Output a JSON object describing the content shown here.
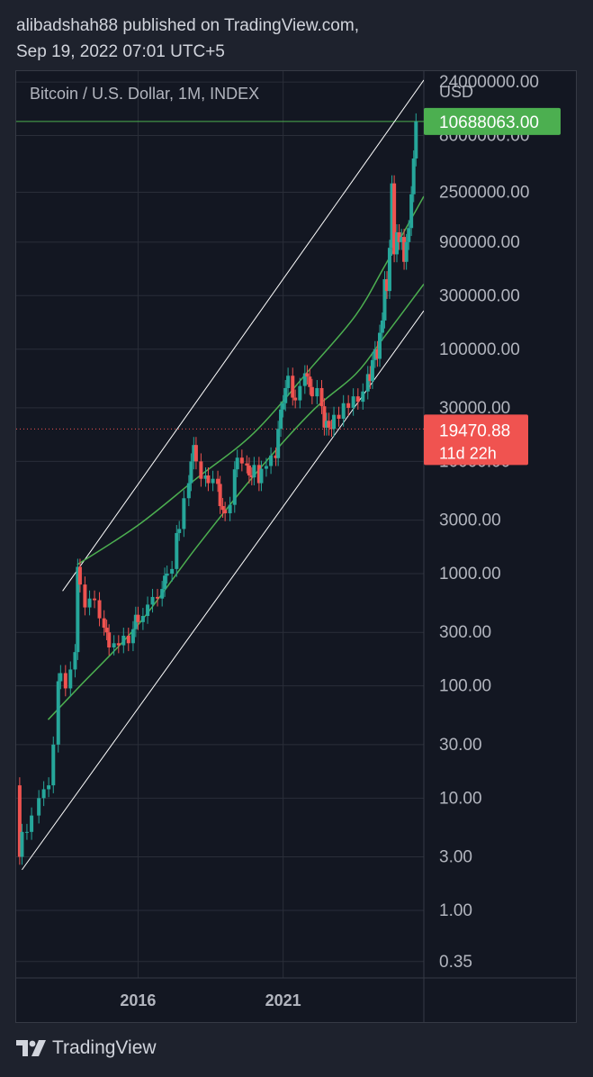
{
  "header": {
    "line1": "alibadshah88 published on TradingView.com,",
    "line2": "Sep 19, 2022 07:01 UTC+5"
  },
  "footer": {
    "brand": "TradingView",
    "logo_icon": "tradingview-logo-icon"
  },
  "colors": {
    "background": "#1e222d",
    "pane": "#131722",
    "grid": "#2a2e39",
    "up": "#26a69a",
    "down": "#ef5350",
    "curve": "#4caf50",
    "channel": "#ffffff",
    "current_price_bg": "#f05350",
    "target_bg": "#4caf50"
  },
  "chart_data": {
    "type": "candlestick",
    "title": "Bitcoin / U.S. Dollar, 1M, INDEX",
    "y_unit": "USD",
    "y_scale": "log",
    "ylim": [
      0.25,
      30000000
    ],
    "xlim": [
      2011.8,
      2025.85
    ],
    "y_ticks": [
      {
        "value": 24000000,
        "label": "24000000.00"
      },
      {
        "value": 8000000,
        "label": "8000000.00"
      },
      {
        "value": 2500000,
        "label": "2500000.00"
      },
      {
        "value": 900000,
        "label": "900000.00"
      },
      {
        "value": 300000,
        "label": "300000.00"
      },
      {
        "value": 100000,
        "label": "100000.00"
      },
      {
        "value": 30000,
        "label": "30000.00"
      },
      {
        "value": 10000,
        "label": "10000.00"
      },
      {
        "value": 3000,
        "label": "3000.00"
      },
      {
        "value": 1000,
        "label": "1000.00"
      },
      {
        "value": 300,
        "label": "300.00"
      },
      {
        "value": 100,
        "label": "100.00"
      },
      {
        "value": 30,
        "label": "30.00"
      },
      {
        "value": 10,
        "label": "10.00"
      },
      {
        "value": 3,
        "label": "3.00"
      },
      {
        "value": 1,
        "label": "1.00"
      },
      {
        "value": 0.35,
        "label": "0.35"
      }
    ],
    "x_ticks": [
      {
        "value": 2016,
        "label": "2016"
      },
      {
        "value": 2021,
        "label": "2021"
      }
    ],
    "grid": true,
    "current_price": {
      "value": 19470.88,
      "label": "19470.88",
      "countdown": "11d 22h"
    },
    "target_level": {
      "value": 10688063,
      "label": "10688063.00"
    },
    "close_series": [
      [
        2011.8,
        13
      ],
      [
        2011.92,
        3
      ],
      [
        2012.0,
        5
      ],
      [
        2012.17,
        5
      ],
      [
        2012.33,
        7
      ],
      [
        2012.58,
        10
      ],
      [
        2012.75,
        12
      ],
      [
        2012.92,
        13
      ],
      [
        2013.08,
        30
      ],
      [
        2013.25,
        110
      ],
      [
        2013.33,
        130
      ],
      [
        2013.5,
        95
      ],
      [
        2013.67,
        140
      ],
      [
        2013.83,
        200
      ],
      [
        2013.92,
        1150
      ],
      [
        2014.0,
        800
      ],
      [
        2014.17,
        500
      ],
      [
        2014.33,
        600
      ],
      [
        2014.5,
        580
      ],
      [
        2014.67,
        400
      ],
      [
        2014.83,
        330
      ],
      [
        2014.92,
        300
      ],
      [
        2015.0,
        220
      ],
      [
        2015.17,
        240
      ],
      [
        2015.33,
        230
      ],
      [
        2015.5,
        280
      ],
      [
        2015.67,
        240
      ],
      [
        2015.83,
        320
      ],
      [
        2015.92,
        430
      ],
      [
        2016.0,
        370
      ],
      [
        2016.17,
        420
      ],
      [
        2016.33,
        530
      ],
      [
        2016.5,
        620
      ],
      [
        2016.67,
        600
      ],
      [
        2016.83,
        730
      ],
      [
        2016.92,
        960
      ],
      [
        2017.0,
        1000
      ],
      [
        2017.17,
        1100
      ],
      [
        2017.33,
        2300
      ],
      [
        2017.42,
        2500
      ],
      [
        2017.58,
        4700
      ],
      [
        2017.75,
        6400
      ],
      [
        2017.83,
        10000
      ],
      [
        2017.92,
        14000
      ],
      [
        2018.0,
        10000
      ],
      [
        2018.17,
        7000
      ],
      [
        2018.33,
        7500
      ],
      [
        2018.42,
        6400
      ],
      [
        2018.58,
        7000
      ],
      [
        2018.75,
        6300
      ],
      [
        2018.83,
        4000
      ],
      [
        2018.92,
        3700
      ],
      [
        2019.0,
        3450
      ],
      [
        2019.17,
        4100
      ],
      [
        2019.33,
        8500
      ],
      [
        2019.42,
        10800
      ],
      [
        2019.58,
        9600
      ],
      [
        2019.75,
        9200
      ],
      [
        2019.83,
        7500
      ],
      [
        2019.92,
        7200
      ],
      [
        2020.0,
        9300
      ],
      [
        2020.17,
        6400
      ],
      [
        2020.25,
        8600
      ],
      [
        2020.42,
        9100
      ],
      [
        2020.58,
        11300
      ],
      [
        2020.75,
        10700
      ],
      [
        2020.83,
        19500
      ],
      [
        2020.92,
        29000
      ],
      [
        2021.0,
        33000
      ],
      [
        2021.08,
        45000
      ],
      [
        2021.17,
        58000
      ],
      [
        2021.33,
        37000
      ],
      [
        2021.42,
        35000
      ],
      [
        2021.58,
        47000
      ],
      [
        2021.75,
        61000
      ],
      [
        2021.83,
        57000
      ],
      [
        2021.92,
        46000
      ],
      [
        2022.0,
        38000
      ],
      [
        2022.17,
        45000
      ],
      [
        2022.33,
        31000
      ],
      [
        2022.42,
        20000
      ],
      [
        2022.5,
        23000
      ],
      [
        2022.58,
        20000
      ],
      [
        2022.67,
        19470.88
      ],
      [
        2022.75,
        26000
      ],
      [
        2022.92,
        24000
      ],
      [
        2023.08,
        33000
      ],
      [
        2023.25,
        30000
      ],
      [
        2023.42,
        38000
      ],
      [
        2023.58,
        34000
      ],
      [
        2023.75,
        42000
      ],
      [
        2023.92,
        60000
      ],
      [
        2024.0,
        52000
      ],
      [
        2024.08,
        80000
      ],
      [
        2024.17,
        100000
      ],
      [
        2024.25,
        82000
      ],
      [
        2024.33,
        140000
      ],
      [
        2024.42,
        180000
      ],
      [
        2024.5,
        420000
      ],
      [
        2024.58,
        330000
      ],
      [
        2024.67,
        800000
      ],
      [
        2024.75,
        3000000
      ],
      [
        2024.83,
        700000
      ],
      [
        2024.92,
        1100000
      ],
      [
        2025.0,
        900000
      ],
      [
        2025.08,
        1000000
      ],
      [
        2025.17,
        600000
      ],
      [
        2025.25,
        900000
      ],
      [
        2025.33,
        1200000
      ],
      [
        2025.42,
        2400000
      ],
      [
        2025.5,
        5000000
      ],
      [
        2025.58,
        10688063
      ]
    ],
    "annotations": {
      "upper_channel_line": [
        [
          2013.4,
          700
        ],
        [
          2025.85,
          25000000
        ]
      ],
      "lower_channel_line": [
        [
          2012.0,
          2.3
        ],
        [
          2025.85,
          220000
        ]
      ],
      "upper_curve": [
        [
          2013.9,
          1200
        ],
        [
          2016.0,
          2700
        ],
        [
          2018.0,
          7000
        ],
        [
          2020.0,
          18000
        ],
        [
          2022.0,
          70000
        ],
        [
          2023.5,
          200000
        ],
        [
          2024.5,
          550000
        ],
        [
          2025.85,
          2300000
        ]
      ],
      "lower_curve": [
        [
          2012.9,
          50
        ],
        [
          2014.0,
          100
        ],
        [
          2016.0,
          350
        ],
        [
          2018.0,
          1700
        ],
        [
          2020.0,
          7500
        ],
        [
          2022.0,
          28000
        ],
        [
          2023.5,
          60000
        ],
        [
          2024.5,
          130000
        ],
        [
          2025.85,
          380000
        ]
      ]
    }
  }
}
